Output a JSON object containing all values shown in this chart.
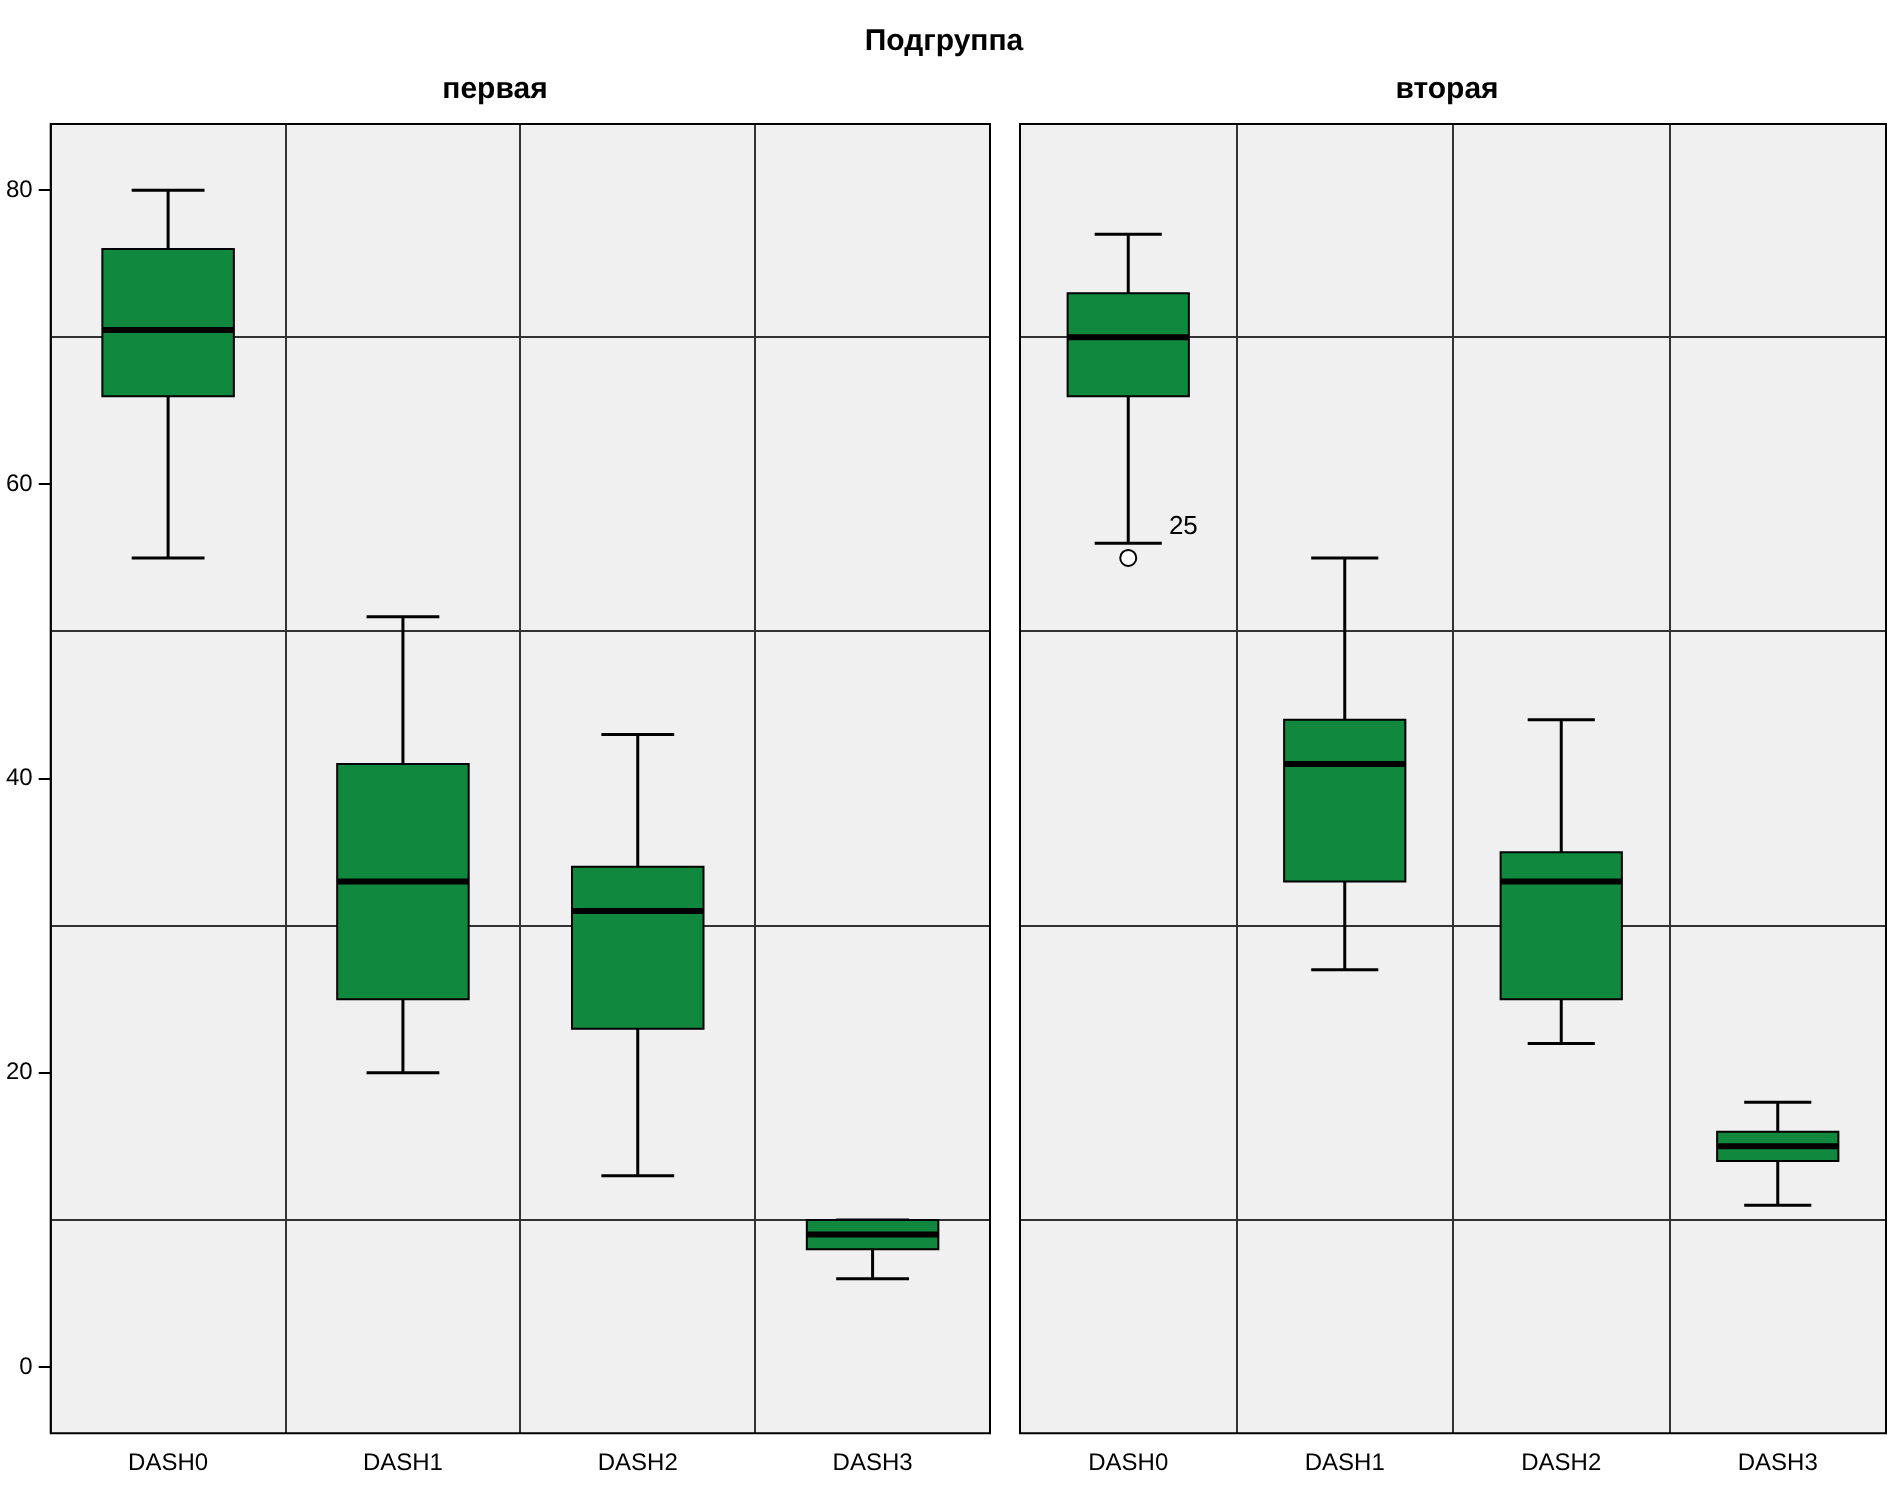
{
  "chart_data": [
    {
      "type": "box",
      "title": "первая",
      "annotations": [
        "Подгруппа"
      ],
      "categories": [
        "DASH0",
        "DASH1",
        "DASH2",
        "DASH3"
      ],
      "series": [
        {
          "color": "#10893f",
          "boxes": [
            {
              "low": 55,
              "q1": 66,
              "median": 70.5,
              "q3": 76,
              "high": 80
            },
            {
              "low": 20,
              "q1": 25,
              "median": 33,
              "q3": 41,
              "high": 51
            },
            {
              "low": 13,
              "q1": 23,
              "median": 31,
              "q3": 34,
              "high": 43
            },
            {
              "low": 6,
              "q1": 8,
              "median": 9,
              "q3": 10,
              "high": 10
            }
          ]
        }
      ],
      "ylim": [
        -4.5,
        84.5
      ],
      "yticks": [
        0,
        {
          "value": 10,
          "label": null
        },
        20,
        {
          "value": 30,
          "label": null
        },
        40,
        {
          "value": 50,
          "label": null
        },
        60,
        {
          "value": 70,
          "label": null
        },
        80
      ],
      "grid": true
    },
    {
      "type": "box",
      "title": "вторая",
      "categories": [
        "DASH0",
        "DASH1",
        "DASH2",
        "DASH3"
      ],
      "series": [
        {
          "color": "#10893f",
          "boxes": [
            {
              "low": 56,
              "q1": 66,
              "median": 70,
              "q3": 73,
              "high": 77,
              "outliers": [
                55
              ]
            },
            {
              "low": 27,
              "q1": 33,
              "median": 41,
              "q3": 44,
              "high": 55
            },
            {
              "low": 22,
              "q1": 25,
              "median": 33,
              "q3": 35,
              "high": 44
            },
            {
              "low": 11,
              "q1": 14,
              "median": 15,
              "q3": 16,
              "high": 18
            }
          ]
        }
      ],
      "annotations": [
        "25"
      ],
      "ylim": [
        -4.5,
        84.5
      ],
      "yticks": [
        0,
        {
          "value": 10,
          "label": null
        },
        20,
        {
          "value": 30,
          "label": null
        },
        40,
        {
          "value": 50,
          "label": null
        },
        60,
        {
          "value": 70,
          "label": null
        },
        80
      ],
      "grid": true,
      "tick_labels": "x"
    }
  ]
}
